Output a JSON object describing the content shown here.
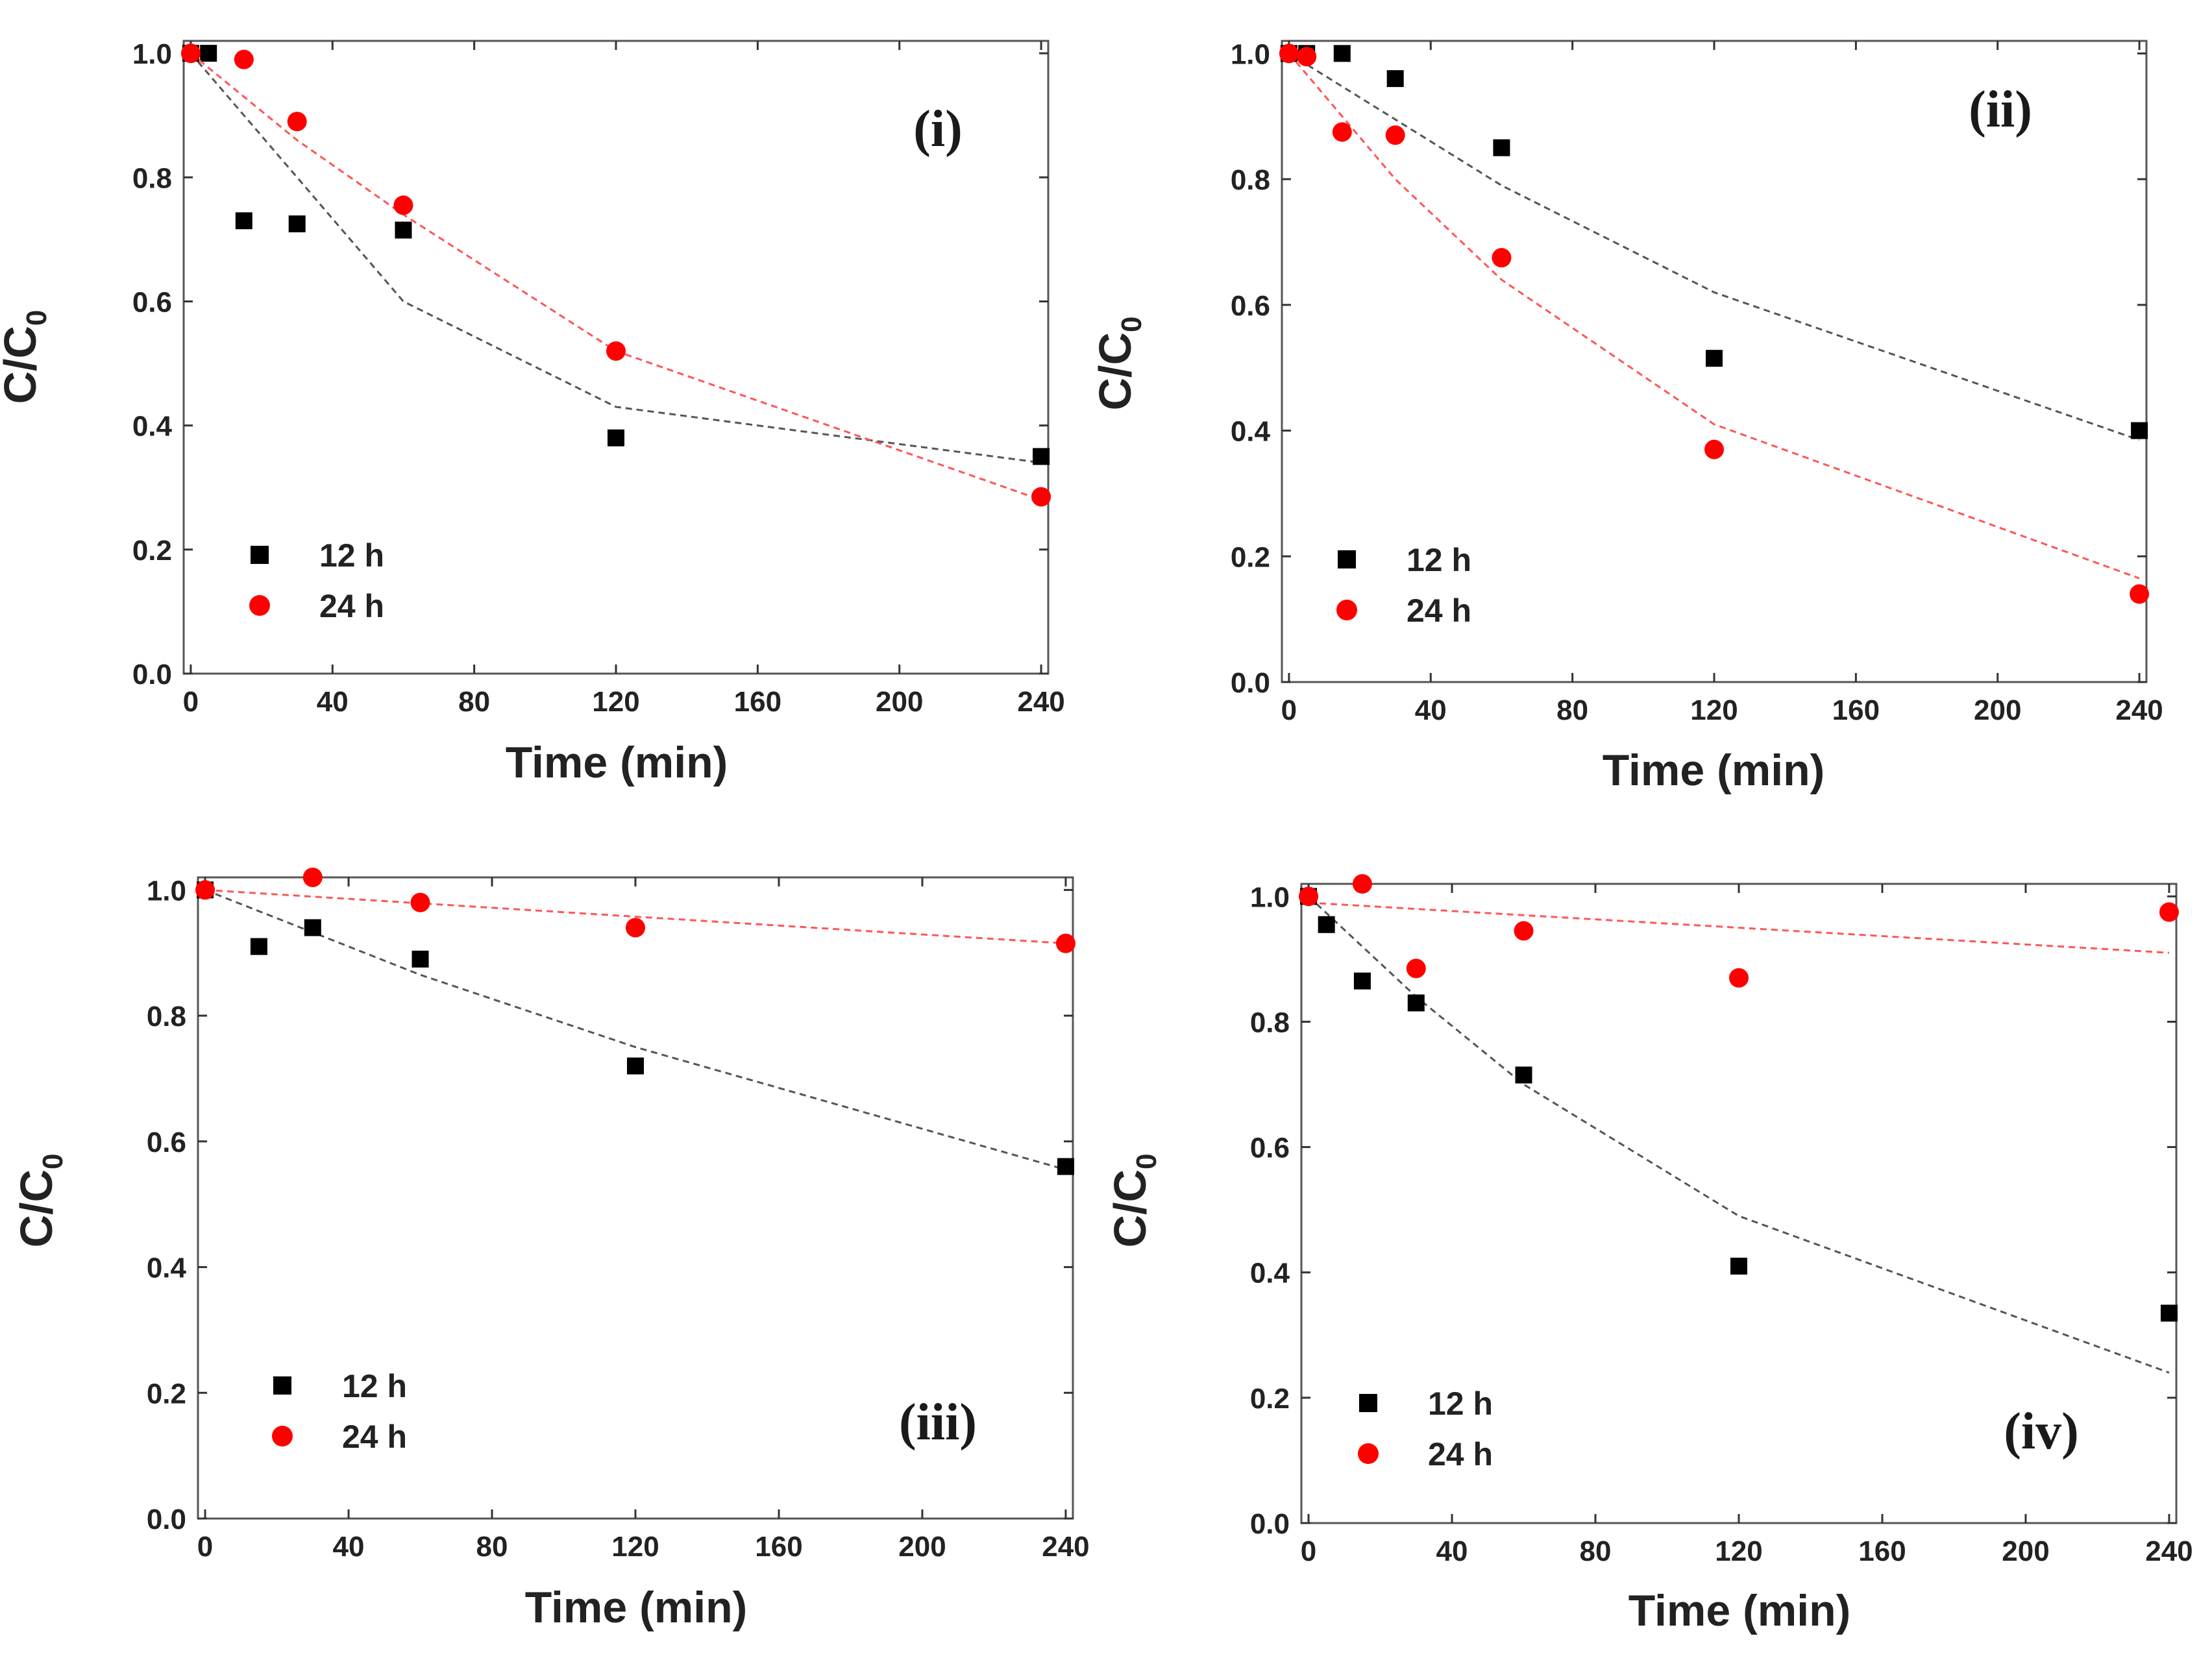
{
  "colors": {
    "series_12h": "#000000",
    "series_24h": "#ff0000",
    "fit_12h": "#555555",
    "fit_24h": "#ff5555"
  },
  "chart_data": [
    {
      "type": "scatter",
      "panel_label": "(i)",
      "xlabel": "Time (min)",
      "ylabel_main": "C/C",
      "ylabel_sub": "0",
      "xlim": [
        -2,
        242
      ],
      "ylim": [
        0,
        1.02
      ],
      "xticks": [
        "0",
        "40",
        "80",
        "120",
        "160",
        "200",
        "240"
      ],
      "yticks": [
        "0.0",
        "0.2",
        "0.4",
        "0.6",
        "0.8",
        "1.0"
      ],
      "legend": [
        "12 h",
        "24 h"
      ],
      "series": [
        {
          "name": "12 h",
          "marker": "square",
          "x": [
            0,
            5,
            15,
            30,
            60,
            120,
            240
          ],
          "y": [
            1.0,
            1.0,
            0.73,
            0.725,
            0.715,
            0.38,
            0.35
          ],
          "fit": {
            "x": [
              0,
              60,
              120,
              240
            ],
            "y": [
              1.0,
              0.6,
              0.43,
              0.34
            ]
          }
        },
        {
          "name": "24 h",
          "marker": "circle",
          "x": [
            0,
            15,
            30,
            60,
            120,
            240
          ],
          "y": [
            1.0,
            0.99,
            0.89,
            0.755,
            0.52,
            0.285
          ],
          "fit": {
            "x": [
              0,
              30,
              60,
              120,
              240
            ],
            "y": [
              1.0,
              0.86,
              0.74,
              0.52,
              0.28
            ]
          }
        }
      ]
    },
    {
      "type": "scatter",
      "panel_label": "(ii)",
      "xlabel": "Time (min)",
      "ylabel_main": "C/C",
      "ylabel_sub": "0",
      "xlim": [
        -2,
        242
      ],
      "ylim": [
        0,
        1.02
      ],
      "xticks": [
        "0",
        "40",
        "80",
        "120",
        "160",
        "200",
        "240"
      ],
      "yticks": [
        "0.0",
        "0.2",
        "0.4",
        "0.6",
        "0.8",
        "1.0"
      ],
      "legend": [
        "12 h",
        "24 h"
      ],
      "series": [
        {
          "name": "12 h",
          "marker": "square",
          "x": [
            0,
            5,
            15,
            30,
            60,
            120,
            240
          ],
          "y": [
            1.0,
            1.0,
            1.0,
            0.96,
            0.85,
            0.515,
            0.4
          ],
          "fit": {
            "x": [
              0,
              60,
              120,
              240
            ],
            "y": [
              1.0,
              0.79,
              0.62,
              0.385
            ]
          }
        },
        {
          "name": "24 h",
          "marker": "circle",
          "x": [
            0,
            5,
            15,
            30,
            60,
            120,
            240
          ],
          "y": [
            1.0,
            0.995,
            0.875,
            0.87,
            0.675,
            0.37,
            0.14
          ],
          "fit": {
            "x": [
              0,
              30,
              60,
              120,
              240
            ],
            "y": [
              1.0,
              0.8,
              0.64,
              0.41,
              0.165
            ]
          }
        }
      ]
    },
    {
      "type": "scatter",
      "panel_label": "(iii)",
      "xlabel": "Time (min)",
      "ylabel_main": "C/C",
      "ylabel_sub": "0",
      "xlim": [
        -2,
        242
      ],
      "ylim": [
        0,
        1.02
      ],
      "xticks": [
        "0",
        "40",
        "80",
        "120",
        "160",
        "200",
        "240"
      ],
      "yticks": [
        "0.0",
        "0.2",
        "0.4",
        "0.6",
        "0.8",
        "1.0"
      ],
      "legend": [
        "12 h",
        "24 h"
      ],
      "series": [
        {
          "name": "12 h",
          "marker": "square",
          "x": [
            0,
            15,
            30,
            60,
            120,
            240
          ],
          "y": [
            1.0,
            0.91,
            0.94,
            0.89,
            0.72,
            0.56
          ],
          "fit": {
            "x": [
              0,
              60,
              120,
              240
            ],
            "y": [
              1.0,
              0.865,
              0.75,
              0.555
            ]
          }
        },
        {
          "name": "24 h",
          "marker": "circle",
          "x": [
            0,
            30,
            60,
            120,
            240
          ],
          "y": [
            1.0,
            1.02,
            0.98,
            0.94,
            0.915
          ],
          "fit": {
            "x": [
              0,
              240
            ],
            "y": [
              1.0,
              0.915
            ]
          }
        }
      ]
    },
    {
      "type": "scatter",
      "panel_label": "(iv)",
      "xlabel": "Time (min)",
      "ylabel_main": "C/C",
      "ylabel_sub": "0",
      "xlim": [
        -2,
        242
      ],
      "ylim": [
        0,
        1.02
      ],
      "xticks": [
        "0",
        "40",
        "80",
        "120",
        "160",
        "200",
        "240"
      ],
      "yticks": [
        "0.0",
        "0.2",
        "0.4",
        "0.6",
        "0.8",
        "1.0"
      ],
      "legend": [
        "12 h",
        "24 h"
      ],
      "series": [
        {
          "name": "12 h",
          "marker": "square",
          "x": [
            0,
            5,
            15,
            30,
            60,
            120,
            240
          ],
          "y": [
            1.0,
            0.955,
            0.865,
            0.83,
            0.715,
            0.41,
            0.335
          ],
          "fit": {
            "x": [
              0,
              30,
              60,
              120,
              240
            ],
            "y": [
              1.0,
              0.84,
              0.7,
              0.49,
              0.24
            ]
          }
        },
        {
          "name": "24 h",
          "marker": "circle",
          "x": [
            0,
            15,
            30,
            60,
            120,
            240
          ],
          "y": [
            1.0,
            1.02,
            0.885,
            0.945,
            0.87,
            0.975
          ],
          "fit": {
            "x": [
              0,
              240
            ],
            "y": [
              0.99,
              0.91
            ]
          }
        }
      ]
    }
  ]
}
